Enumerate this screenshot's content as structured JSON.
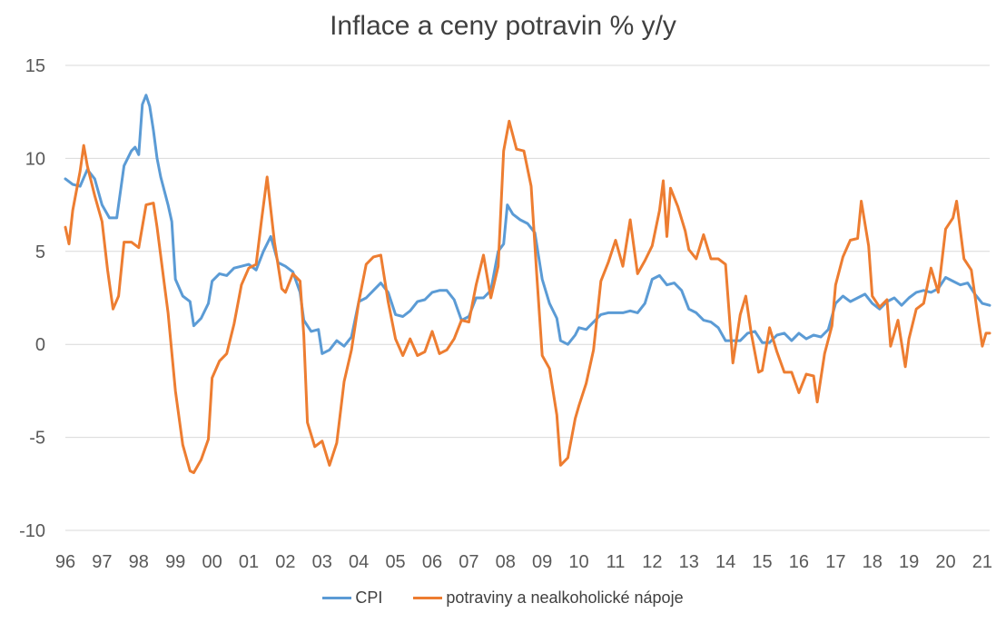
{
  "chart_data": {
    "type": "line",
    "title": "Inflace a ceny potravin % y/y",
    "xlabel": "",
    "ylabel": "",
    "ylim": [
      -10,
      15
    ],
    "yticks": [
      15,
      10,
      5,
      0,
      -5,
      -10
    ],
    "ytick_labels": [
      "15",
      "10",
      "5",
      "0",
      "-5",
      "-10"
    ],
    "xlim": [
      1996.0,
      2021.2
    ],
    "xtick_labels": [
      "96",
      "97",
      "98",
      "99",
      "00",
      "01",
      "02",
      "03",
      "04",
      "05",
      "06",
      "07",
      "08",
      "09",
      "10",
      "11",
      "12",
      "13",
      "14",
      "15",
      "16",
      "17",
      "18",
      "19",
      "20",
      "21"
    ],
    "grid": true,
    "legend_position": "bottom",
    "series": [
      {
        "name": "CPI",
        "color": "#5b9bd5",
        "points": [
          [
            1996.0,
            8.9
          ],
          [
            1996.2,
            8.6
          ],
          [
            1996.4,
            8.5
          ],
          [
            1996.6,
            9.4
          ],
          [
            1996.8,
            8.9
          ],
          [
            1997.0,
            7.5
          ],
          [
            1997.2,
            6.8
          ],
          [
            1997.4,
            6.8
          ],
          [
            1997.6,
            9.6
          ],
          [
            1997.8,
            10.4
          ],
          [
            1997.9,
            10.6
          ],
          [
            1998.0,
            10.2
          ],
          [
            1998.1,
            12.9
          ],
          [
            1998.2,
            13.4
          ],
          [
            1998.3,
            12.8
          ],
          [
            1998.4,
            11.5
          ],
          [
            1998.5,
            10.0
          ],
          [
            1998.6,
            9.0
          ],
          [
            1998.8,
            7.5
          ],
          [
            1998.9,
            6.6
          ],
          [
            1999.0,
            3.5
          ],
          [
            1999.2,
            2.6
          ],
          [
            1999.4,
            2.3
          ],
          [
            1999.5,
            1.0
          ],
          [
            1999.7,
            1.4
          ],
          [
            1999.9,
            2.2
          ],
          [
            2000.0,
            3.4
          ],
          [
            2000.2,
            3.8
          ],
          [
            2000.4,
            3.7
          ],
          [
            2000.6,
            4.1
          ],
          [
            2000.8,
            4.2
          ],
          [
            2001.0,
            4.3
          ],
          [
            2001.2,
            4.0
          ],
          [
            2001.4,
            5.0
          ],
          [
            2001.6,
            5.8
          ],
          [
            2001.8,
            4.4
          ],
          [
            2002.0,
            4.2
          ],
          [
            2002.2,
            3.9
          ],
          [
            2002.4,
            2.8
          ],
          [
            2002.5,
            1.3
          ],
          [
            2002.7,
            0.7
          ],
          [
            2002.9,
            0.8
          ],
          [
            2003.0,
            -0.5
          ],
          [
            2003.2,
            -0.3
          ],
          [
            2003.4,
            0.2
          ],
          [
            2003.6,
            -0.1
          ],
          [
            2003.8,
            0.4
          ],
          [
            2004.0,
            2.3
          ],
          [
            2004.2,
            2.5
          ],
          [
            2004.4,
            2.9
          ],
          [
            2004.6,
            3.3
          ],
          [
            2004.8,
            2.8
          ],
          [
            2005.0,
            1.6
          ],
          [
            2005.2,
            1.5
          ],
          [
            2005.4,
            1.8
          ],
          [
            2005.6,
            2.3
          ],
          [
            2005.8,
            2.4
          ],
          [
            2006.0,
            2.8
          ],
          [
            2006.2,
            2.9
          ],
          [
            2006.4,
            2.9
          ],
          [
            2006.6,
            2.4
          ],
          [
            2006.8,
            1.3
          ],
          [
            2007.0,
            1.5
          ],
          [
            2007.2,
            2.5
          ],
          [
            2007.4,
            2.5
          ],
          [
            2007.6,
            2.9
          ],
          [
            2007.8,
            5.0
          ],
          [
            2007.95,
            5.4
          ],
          [
            2008.05,
            7.5
          ],
          [
            2008.2,
            7.0
          ],
          [
            2008.4,
            6.7
          ],
          [
            2008.6,
            6.5
          ],
          [
            2008.8,
            6.0
          ],
          [
            2009.0,
            3.5
          ],
          [
            2009.2,
            2.2
          ],
          [
            2009.4,
            1.4
          ],
          [
            2009.5,
            0.2
          ],
          [
            2009.7,
            0.0
          ],
          [
            2009.9,
            0.5
          ],
          [
            2010.0,
            0.9
          ],
          [
            2010.2,
            0.8
          ],
          [
            2010.4,
            1.2
          ],
          [
            2010.6,
            1.6
          ],
          [
            2010.8,
            1.7
          ],
          [
            2011.0,
            1.7
          ],
          [
            2011.2,
            1.7
          ],
          [
            2011.4,
            1.8
          ],
          [
            2011.6,
            1.7
          ],
          [
            2011.8,
            2.2
          ],
          [
            2012.0,
            3.5
          ],
          [
            2012.2,
            3.7
          ],
          [
            2012.4,
            3.2
          ],
          [
            2012.6,
            3.3
          ],
          [
            2012.8,
            2.9
          ],
          [
            2013.0,
            1.9
          ],
          [
            2013.2,
            1.7
          ],
          [
            2013.4,
            1.3
          ],
          [
            2013.6,
            1.2
          ],
          [
            2013.8,
            0.9
          ],
          [
            2014.0,
            0.2
          ],
          [
            2014.2,
            0.2
          ],
          [
            2014.4,
            0.2
          ],
          [
            2014.6,
            0.6
          ],
          [
            2014.8,
            0.7
          ],
          [
            2015.0,
            0.1
          ],
          [
            2015.2,
            0.1
          ],
          [
            2015.4,
            0.5
          ],
          [
            2015.6,
            0.6
          ],
          [
            2015.8,
            0.2
          ],
          [
            2016.0,
            0.6
          ],
          [
            2016.2,
            0.3
          ],
          [
            2016.4,
            0.5
          ],
          [
            2016.6,
            0.4
          ],
          [
            2016.8,
            0.8
          ],
          [
            2017.0,
            2.2
          ],
          [
            2017.2,
            2.6
          ],
          [
            2017.4,
            2.3
          ],
          [
            2017.6,
            2.5
          ],
          [
            2017.8,
            2.7
          ],
          [
            2018.0,
            2.2
          ],
          [
            2018.2,
            1.9
          ],
          [
            2018.4,
            2.3
          ],
          [
            2018.6,
            2.5
          ],
          [
            2018.8,
            2.1
          ],
          [
            2019.0,
            2.5
          ],
          [
            2019.2,
            2.8
          ],
          [
            2019.4,
            2.9
          ],
          [
            2019.6,
            2.8
          ],
          [
            2019.8,
            3.0
          ],
          [
            2020.0,
            3.6
          ],
          [
            2020.2,
            3.4
          ],
          [
            2020.4,
            3.2
          ],
          [
            2020.6,
            3.3
          ],
          [
            2020.8,
            2.7
          ],
          [
            2021.0,
            2.2
          ],
          [
            2021.2,
            2.1
          ]
        ]
      },
      {
        "name": "potraviny a nealkoholické nápoje",
        "color": "#ed7d31",
        "points": [
          [
            1996.0,
            6.3
          ],
          [
            1996.1,
            5.4
          ],
          [
            1996.2,
            7.2
          ],
          [
            1996.4,
            9.3
          ],
          [
            1996.5,
            10.7
          ],
          [
            1996.6,
            9.6
          ],
          [
            1996.8,
            8.0
          ],
          [
            1997.0,
            6.6
          ],
          [
            1997.15,
            4.0
          ],
          [
            1997.3,
            1.9
          ],
          [
            1997.45,
            2.6
          ],
          [
            1997.6,
            5.5
          ],
          [
            1997.8,
            5.5
          ],
          [
            1998.0,
            5.2
          ],
          [
            1998.2,
            7.5
          ],
          [
            1998.4,
            7.6
          ],
          [
            1998.5,
            6.3
          ],
          [
            1998.7,
            3.2
          ],
          [
            1998.8,
            1.7
          ],
          [
            1999.0,
            -2.5
          ],
          [
            1999.2,
            -5.4
          ],
          [
            1999.4,
            -6.8
          ],
          [
            1999.5,
            -6.9
          ],
          [
            1999.7,
            -6.2
          ],
          [
            1999.9,
            -5.1
          ],
          [
            2000.0,
            -1.8
          ],
          [
            2000.2,
            -0.9
          ],
          [
            2000.4,
            -0.5
          ],
          [
            2000.6,
            1.1
          ],
          [
            2000.8,
            3.2
          ],
          [
            2001.0,
            4.1
          ],
          [
            2001.2,
            4.3
          ],
          [
            2001.35,
            6.7
          ],
          [
            2001.5,
            9.0
          ],
          [
            2001.7,
            5.5
          ],
          [
            2001.9,
            3.0
          ],
          [
            2002.0,
            2.8
          ],
          [
            2002.2,
            3.8
          ],
          [
            2002.4,
            3.4
          ],
          [
            2002.5,
            0.5
          ],
          [
            2002.6,
            -4.2
          ],
          [
            2002.8,
            -5.5
          ],
          [
            2003.0,
            -5.2
          ],
          [
            2003.2,
            -6.5
          ],
          [
            2003.4,
            -5.3
          ],
          [
            2003.6,
            -2.0
          ],
          [
            2003.8,
            -0.3
          ],
          [
            2004.0,
            2.3
          ],
          [
            2004.2,
            4.3
          ],
          [
            2004.4,
            4.7
          ],
          [
            2004.6,
            4.8
          ],
          [
            2004.8,
            2.3
          ],
          [
            2005.0,
            0.3
          ],
          [
            2005.2,
            -0.6
          ],
          [
            2005.4,
            0.3
          ],
          [
            2005.6,
            -0.6
          ],
          [
            2005.8,
            -0.4
          ],
          [
            2006.0,
            0.7
          ],
          [
            2006.2,
            -0.5
          ],
          [
            2006.4,
            -0.3
          ],
          [
            2006.6,
            0.3
          ],
          [
            2006.8,
            1.3
          ],
          [
            2007.0,
            1.2
          ],
          [
            2007.2,
            3.2
          ],
          [
            2007.4,
            4.8
          ],
          [
            2007.6,
            2.5
          ],
          [
            2007.8,
            4.2
          ],
          [
            2007.95,
            10.4
          ],
          [
            2008.1,
            12.0
          ],
          [
            2008.3,
            10.5
          ],
          [
            2008.5,
            10.4
          ],
          [
            2008.7,
            8.5
          ],
          [
            2008.85,
            3.8
          ],
          [
            2009.0,
            -0.6
          ],
          [
            2009.2,
            -1.3
          ],
          [
            2009.4,
            -3.8
          ],
          [
            2009.5,
            -6.5
          ],
          [
            2009.7,
            -6.1
          ],
          [
            2009.9,
            -4.0
          ],
          [
            2010.0,
            -3.3
          ],
          [
            2010.2,
            -2.1
          ],
          [
            2010.4,
            -0.3
          ],
          [
            2010.6,
            3.4
          ],
          [
            2010.8,
            4.4
          ],
          [
            2011.0,
            5.6
          ],
          [
            2011.2,
            4.2
          ],
          [
            2011.4,
            6.7
          ],
          [
            2011.6,
            3.8
          ],
          [
            2011.8,
            4.5
          ],
          [
            2012.0,
            5.3
          ],
          [
            2012.2,
            7.2
          ],
          [
            2012.3,
            8.8
          ],
          [
            2012.4,
            5.8
          ],
          [
            2012.5,
            8.4
          ],
          [
            2012.7,
            7.4
          ],
          [
            2012.9,
            6.1
          ],
          [
            2013.0,
            5.1
          ],
          [
            2013.2,
            4.6
          ],
          [
            2013.4,
            5.9
          ],
          [
            2013.6,
            4.6
          ],
          [
            2013.8,
            4.6
          ],
          [
            2014.0,
            4.3
          ],
          [
            2014.2,
            -1.0
          ],
          [
            2014.4,
            1.6
          ],
          [
            2014.55,
            2.6
          ],
          [
            2014.7,
            0.6
          ],
          [
            2014.9,
            -1.5
          ],
          [
            2015.0,
            -1.4
          ],
          [
            2015.2,
            0.9
          ],
          [
            2015.4,
            -0.4
          ],
          [
            2015.6,
            -1.5
          ],
          [
            2015.8,
            -1.5
          ],
          [
            2016.0,
            -2.6
          ],
          [
            2016.2,
            -1.6
          ],
          [
            2016.4,
            -1.7
          ],
          [
            2016.5,
            -3.1
          ],
          [
            2016.7,
            -0.5
          ],
          [
            2016.9,
            1.0
          ],
          [
            2017.0,
            3.2
          ],
          [
            2017.2,
            4.7
          ],
          [
            2017.4,
            5.6
          ],
          [
            2017.6,
            5.7
          ],
          [
            2017.7,
            7.7
          ],
          [
            2017.9,
            5.3
          ],
          [
            2018.0,
            2.6
          ],
          [
            2018.2,
            2.0
          ],
          [
            2018.4,
            2.4
          ],
          [
            2018.5,
            -0.1
          ],
          [
            2018.7,
            1.3
          ],
          [
            2018.9,
            -1.2
          ],
          [
            2019.0,
            0.3
          ],
          [
            2019.2,
            1.9
          ],
          [
            2019.4,
            2.2
          ],
          [
            2019.6,
            4.1
          ],
          [
            2019.8,
            2.8
          ],
          [
            2020.0,
            6.2
          ],
          [
            2020.2,
            6.8
          ],
          [
            2020.3,
            7.7
          ],
          [
            2020.5,
            4.6
          ],
          [
            2020.7,
            4.0
          ],
          [
            2020.9,
            1.2
          ],
          [
            2021.0,
            -0.1
          ],
          [
            2021.1,
            0.6
          ],
          [
            2021.2,
            0.6
          ]
        ]
      }
    ]
  }
}
